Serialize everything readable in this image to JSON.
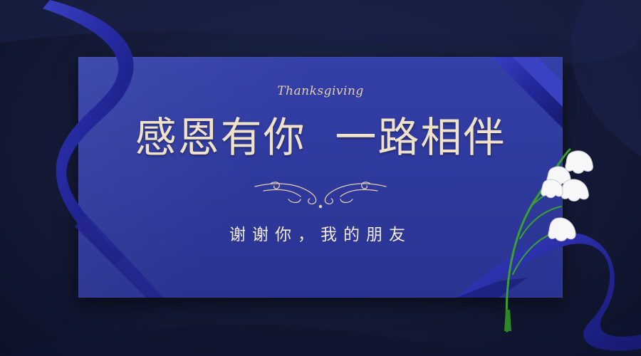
{
  "card": {
    "script_title": "Thanksgiving",
    "main_title": "感恩有你  一路相伴",
    "subtitle": "谢谢你，我的朋友"
  },
  "colors": {
    "background": "#151b38",
    "card": "#3038a0",
    "ribbon": "#2a2fa0",
    "gold_text": "#e4cfae",
    "white_text": "#f1e9da"
  }
}
